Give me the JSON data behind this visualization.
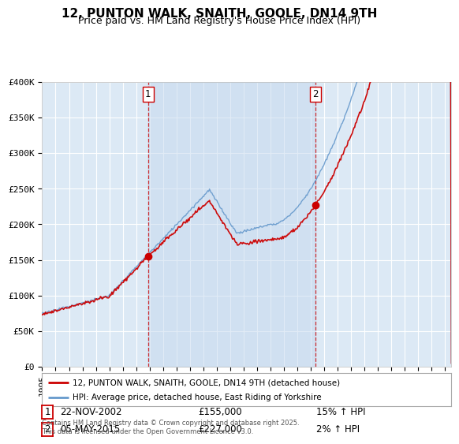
{
  "title": "12, PUNTON WALK, SNAITH, GOOLE, DN14 9TH",
  "subtitle": "Price paid vs. HM Land Registry's House Price Index (HPI)",
  "ylim": [
    0,
    400000
  ],
  "xlim_start": 1995,
  "xlim_end": 2025.5,
  "transaction1_date": 2002.9,
  "transaction1_price": 155000,
  "transaction1_label": "22-NOV-2002",
  "transaction1_hpi": "15% ↑ HPI",
  "transaction2_date": 2015.37,
  "transaction2_price": 227000,
  "transaction2_label": "05-MAY-2015",
  "transaction2_hpi": "2% ↑ HPI",
  "red_line_color": "#cc0000",
  "blue_line_color": "#6699cc",
  "fill_color": "#c5d8ef",
  "background_color": "#ffffff",
  "plot_bg_color": "#dce9f5",
  "grid_color": "#ffffff",
  "legend_label_red": "12, PUNTON WALK, SNAITH, GOOLE, DN14 9TH (detached house)",
  "legend_label_blue": "HPI: Average price, detached house, East Riding of Yorkshire",
  "footer": "Contains HM Land Registry data © Crown copyright and database right 2025.\nThis data is licensed under the Open Government Licence v3.0.",
  "title_fontsize": 11,
  "subtitle_fontsize": 9,
  "tick_fontsize": 8
}
